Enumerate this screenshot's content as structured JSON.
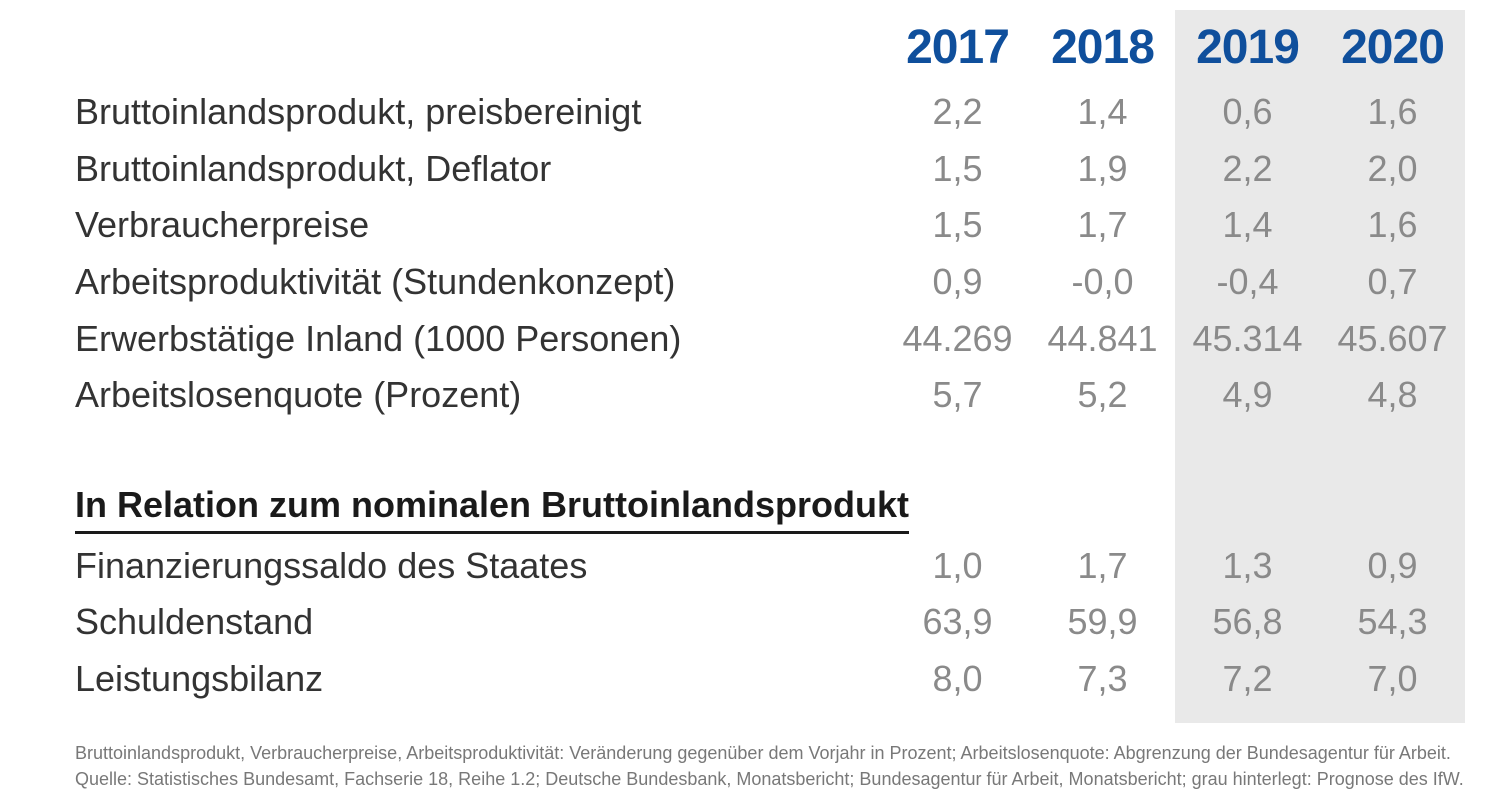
{
  "colors": {
    "year_header_blue": "#0f4f9c",
    "value_gray": "#8a8a8a",
    "label_dark": "#333333",
    "forecast_highlight_bg": "#e9e9e9",
    "footnote_gray": "#787878"
  },
  "chart_data": {
    "type": "table",
    "columns": [
      "2017",
      "2018",
      "2019",
      "2020"
    ],
    "rows": [
      {
        "label": "Bruttoinlandsprodukt, preisbereinigt",
        "values": [
          "2,2",
          "1,4",
          "0,6",
          "1,6"
        ]
      },
      {
        "label": "Bruttoinlandsprodukt, Deflator",
        "values": [
          "1,5",
          "1,9",
          "2,2",
          "2,0"
        ]
      },
      {
        "label": "Verbraucherpreise",
        "values": [
          "1,5",
          "1,7",
          "1,4",
          "1,6"
        ]
      },
      {
        "label": "Arbeitsproduktivität (Stundenkonzept)",
        "values": [
          "0,9",
          "-0,0",
          "-0,4",
          "0,7"
        ]
      },
      {
        "label": "Erwerbstätige Inland (1000 Personen)",
        "values": [
          "44.269",
          "44.841",
          "45.314",
          "45.607"
        ]
      },
      {
        "label": "Arbeitslosenquote (Prozent)",
        "values": [
          "5,7",
          "5,2",
          "4,9",
          "4,8"
        ]
      }
    ],
    "section_header": "In Relation zum nominalen Bruttoinlandsprodukt",
    "section_rows": [
      {
        "label": "Finanzierungssaldo des Staates",
        "values": [
          "1,0",
          "1,7",
          "1,3",
          "0,9"
        ]
      },
      {
        "label": "Schuldenstand",
        "values": [
          "63,9",
          "59,9",
          "56,8",
          "54,3"
        ]
      },
      {
        "label": "Leistungsbilanz",
        "values": [
          "8,0",
          "7,3",
          "7,2",
          "7,0"
        ]
      }
    ],
    "forecast_columns": [
      "2019",
      "2020"
    ],
    "layout_hints": {
      "forecast_columns_highlighted_gray": true,
      "value_alignment": "centered-per-year-column"
    }
  },
  "footnotes": [
    "Bruttoinlandsprodukt, Verbraucherpreise, Arbeitsproduktivität: Veränderung gegenüber dem Vorjahr in Prozent; Arbeitslosenquote: Abgrenzung der Bundesagentur für Arbeit.",
    "Quelle: Statistisches Bundesamt, Fachserie 18, Reihe 1.2; Deutsche Bundesbank, Monatsbericht; Bundesagentur für Arbeit, Monatsbericht; grau hinterlegt: Prognose des IfW."
  ]
}
